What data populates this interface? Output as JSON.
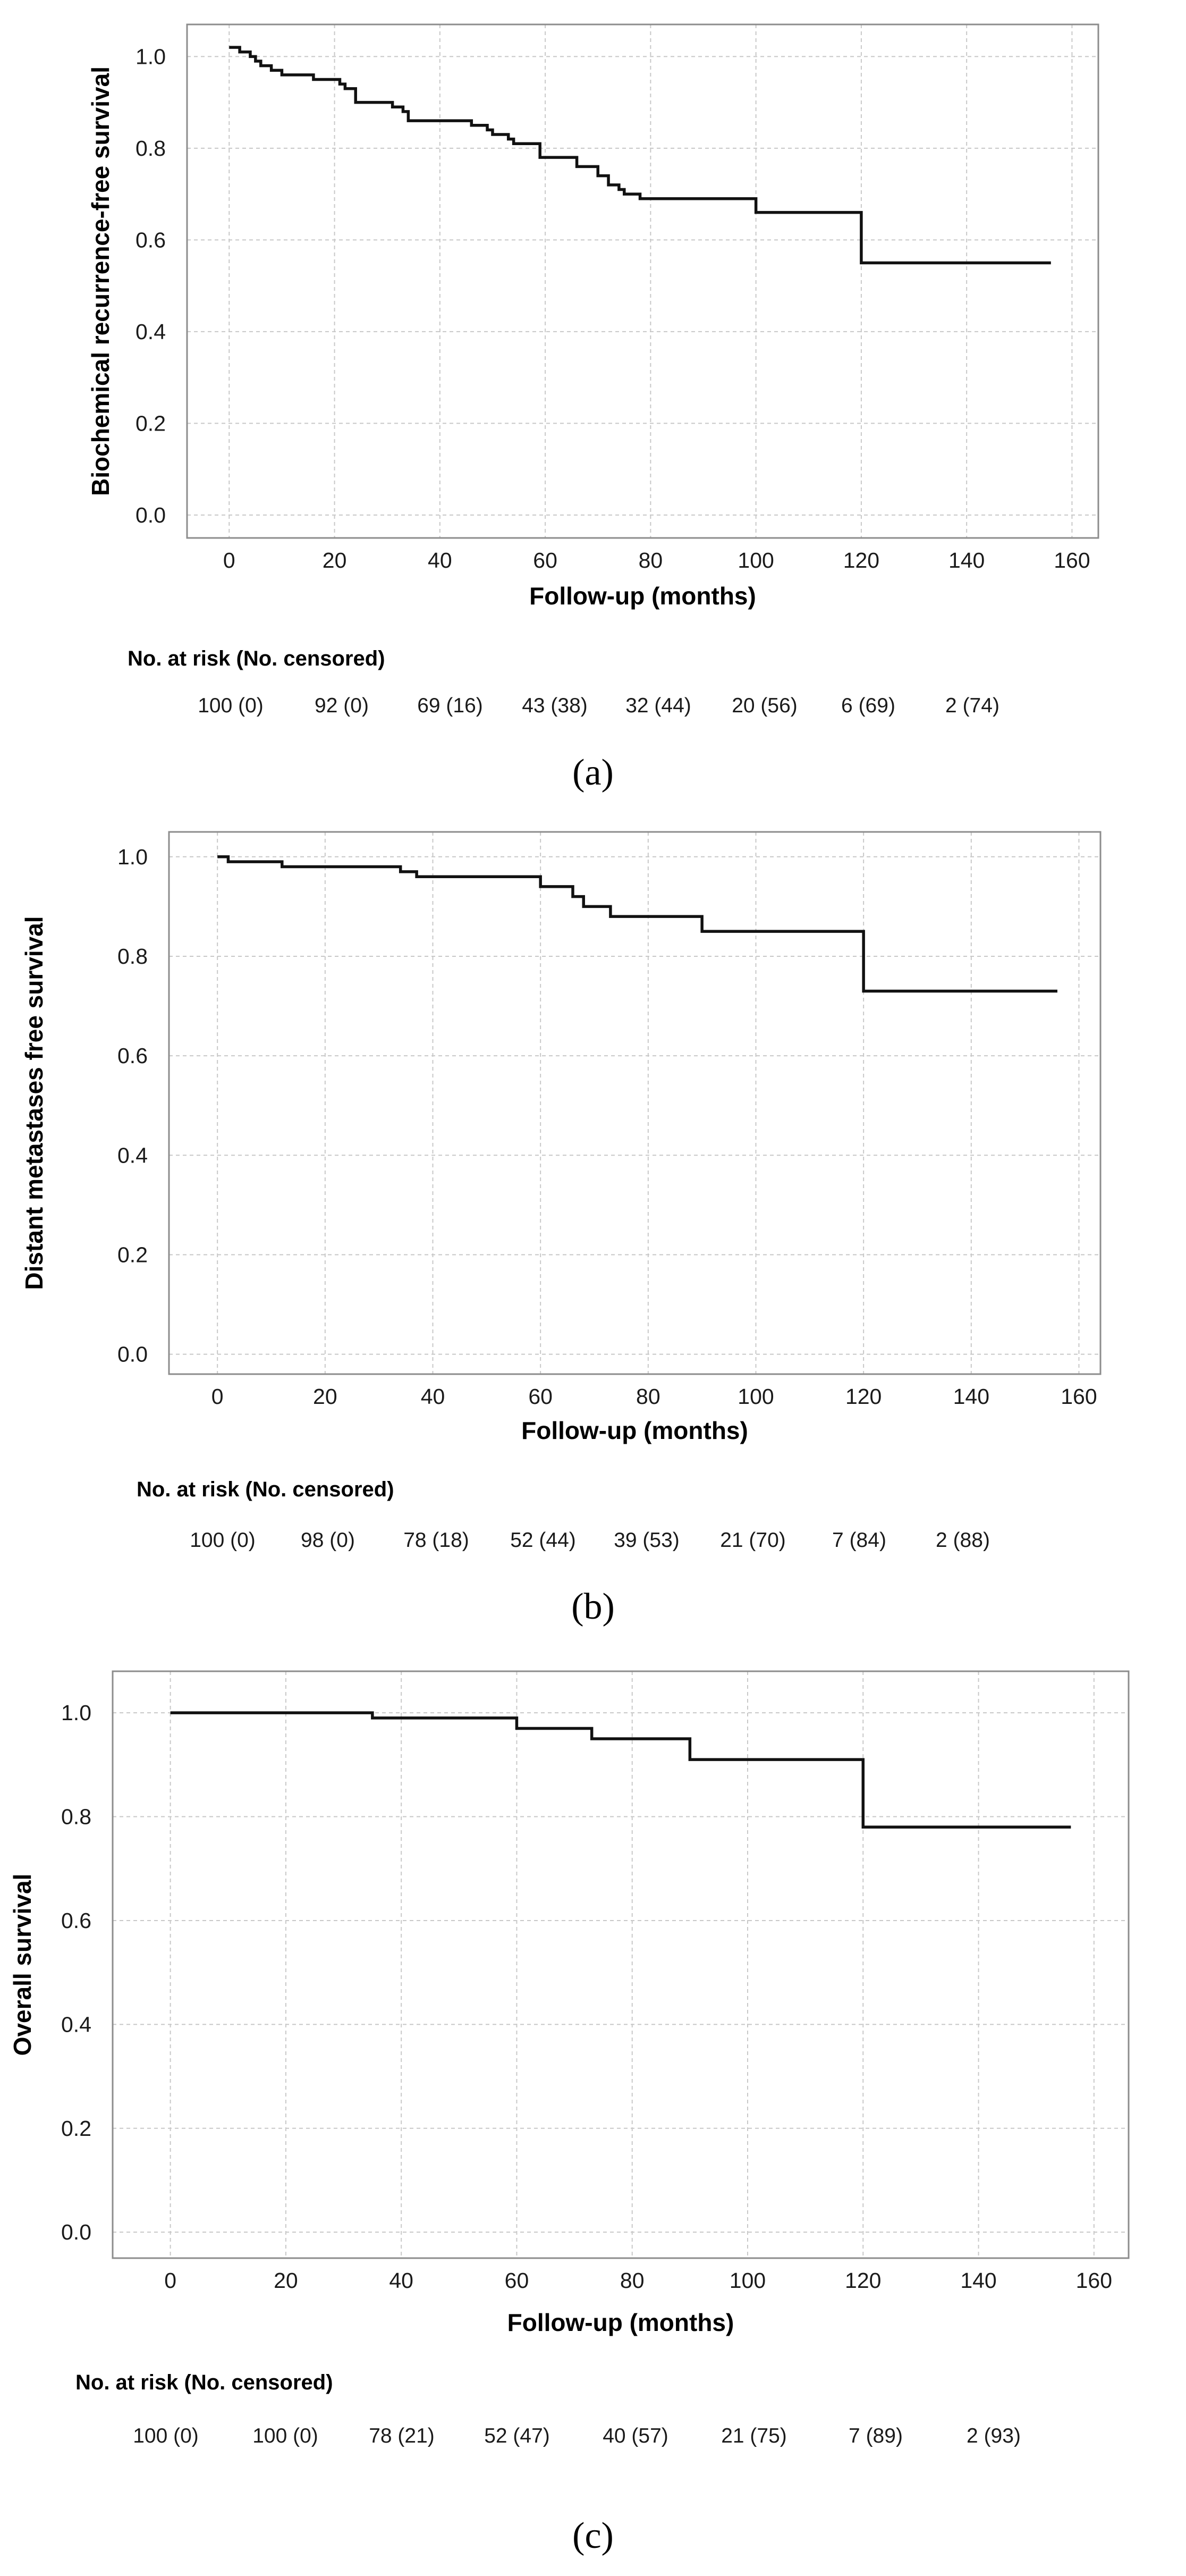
{
  "chart_data": [
    {
      "type": "line",
      "step": true,
      "panel": "a",
      "ylabel": "Biochemical recurrence-free survival",
      "xlabel": "Follow-up (months)",
      "xlim": [
        -8,
        165
      ],
      "ylim": [
        -0.05,
        1.07
      ],
      "x_ticks": [
        0,
        20,
        40,
        60,
        80,
        100,
        120,
        140,
        160
      ],
      "y_ticks": [
        0.0,
        0.2,
        0.4,
        0.6,
        0.8,
        1.0
      ],
      "y_tick_labels": [
        "0.0",
        "0.2",
        "0.4",
        "0.6",
        "0.8",
        "1.0"
      ],
      "grid": true,
      "series": [
        {
          "name": "Biochemical recurrence-free survival",
          "x": [
            0,
            2,
            4,
            5,
            6,
            8,
            10,
            14,
            16,
            19,
            21,
            22,
            24,
            31,
            33,
            34,
            46,
            49,
            50,
            53,
            54,
            59,
            66,
            70,
            72,
            74,
            75,
            78,
            99,
            100,
            119,
            120,
            156
          ],
          "y": [
            1.02,
            1.01,
            1.0,
            0.99,
            0.98,
            0.97,
            0.96,
            0.96,
            0.95,
            0.95,
            0.94,
            0.93,
            0.9,
            0.89,
            0.88,
            0.86,
            0.85,
            0.84,
            0.83,
            0.82,
            0.81,
            0.78,
            0.76,
            0.74,
            0.72,
            0.71,
            0.7,
            0.69,
            0.69,
            0.66,
            0.66,
            0.55,
            0.55
          ]
        }
      ],
      "risk_table": {
        "title": "No. at risk (No. censored)",
        "labels": [
          "100 (0)",
          "92 (0)",
          "69 (16)",
          "43 (38)",
          "32 (44)",
          "20 (56)",
          "6 (69)",
          "2 (74)"
        ]
      },
      "caption": "(a)"
    },
    {
      "type": "line",
      "step": true,
      "panel": "b",
      "ylabel": "Distant metastases free survival",
      "xlabel": "Follow-up (months)",
      "xlim": [
        -9,
        164
      ],
      "ylim": [
        -0.04,
        1.05
      ],
      "x_ticks": [
        0,
        20,
        40,
        60,
        80,
        100,
        120,
        140,
        160
      ],
      "y_ticks": [
        0.0,
        0.2,
        0.4,
        0.6,
        0.8,
        1.0
      ],
      "y_tick_labels": [
        "0.0",
        "0.2",
        "0.4",
        "0.6",
        "0.8",
        "1.0"
      ],
      "grid": true,
      "series": [
        {
          "name": "Distant metastases free survival",
          "x": [
            0,
            2,
            12,
            34,
            37,
            60,
            66,
            68,
            73,
            90,
            120,
            156
          ],
          "y": [
            1.0,
            0.99,
            0.98,
            0.97,
            0.96,
            0.94,
            0.92,
            0.9,
            0.88,
            0.85,
            0.73,
            0.73
          ]
        }
      ],
      "risk_table": {
        "title": "No. at risk (No. censored)",
        "labels": [
          "100 (0)",
          "98 (0)",
          "78 (18)",
          "52 (44)",
          "39 (53)",
          "21 (70)",
          "7 (84)",
          "2 (88)"
        ]
      },
      "caption": "(b)"
    },
    {
      "type": "line",
      "step": true,
      "panel": "c",
      "ylabel": "Overall survival",
      "xlabel": "Follow-up (months)",
      "xlim": [
        -10,
        166
      ],
      "ylim": [
        -0.05,
        1.08
      ],
      "x_ticks": [
        0,
        20,
        40,
        60,
        80,
        100,
        120,
        140,
        160
      ],
      "y_ticks": [
        0.0,
        0.2,
        0.4,
        0.6,
        0.8,
        1.0
      ],
      "y_tick_labels": [
        "0.0",
        "0.2",
        "0.4",
        "0.6",
        "0.8",
        "1.0"
      ],
      "grid": true,
      "series": [
        {
          "name": "Overall survival",
          "x": [
            0,
            35,
            60,
            73,
            90,
            120,
            156
          ],
          "y": [
            1.0,
            0.99,
            0.97,
            0.95,
            0.91,
            0.78,
            0.78
          ]
        }
      ],
      "risk_table": {
        "title": "No. at risk (No. censored)",
        "labels": [
          "100 (0)",
          "100 (0)",
          "78 (21)",
          "52 (47)",
          "40 (57)",
          "21 (75)",
          "7 (89)",
          "2 (93)"
        ]
      },
      "caption": "(c)"
    }
  ]
}
